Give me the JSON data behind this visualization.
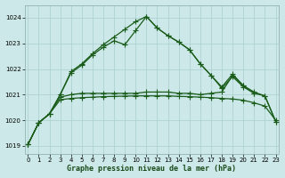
{
  "title": "Graphe pression niveau de la mer (hPa)",
  "background_color": "#cce8e8",
  "grid_color": "#aacece",
  "line_color": "#1a5c1a",
  "xlim": [
    -0.3,
    23.3
  ],
  "ylim": [
    1018.7,
    1024.5
  ],
  "yticks": [
    1019,
    1020,
    1021,
    1022,
    1023,
    1024
  ],
  "xtick_labels": [
    "0",
    "1",
    "2",
    "3",
    "4",
    "5",
    "6",
    "7",
    "8",
    "9",
    "10",
    "11",
    "12",
    "13",
    "14",
    "15",
    "16",
    "17",
    "18",
    "19",
    "20",
    "21",
    "22",
    "23"
  ],
  "series1_x": [
    0,
    1,
    2,
    3,
    4,
    5,
    6,
    7,
    8,
    9,
    10,
    11,
    12,
    13,
    14,
    15,
    16,
    17,
    18,
    19,
    20,
    21
  ],
  "series1_y": [
    1019.05,
    1019.9,
    1020.25,
    1021.0,
    1021.85,
    1022.15,
    1022.55,
    1022.85,
    1023.1,
    1022.95,
    1023.5,
    1024.05,
    1023.6,
    1023.3,
    1023.05,
    1022.75,
    1022.2,
    1021.75,
    1021.25,
    1021.7,
    1021.3,
    1021.05
  ],
  "series2_x": [
    0,
    1,
    2,
    3,
    4,
    5,
    6,
    7,
    8,
    9,
    10,
    11,
    12,
    13,
    14,
    15,
    16,
    17,
    18,
    19,
    20,
    21,
    22,
    23
  ],
  "series2_y": [
    1019.05,
    1019.9,
    1020.25,
    1021.0,
    1021.9,
    1022.2,
    1022.6,
    1022.95,
    1023.25,
    1023.55,
    1023.85,
    1024.05,
    1023.6,
    1023.3,
    1023.05,
    1022.75,
    1022.2,
    1021.75,
    1021.3,
    1021.8,
    1021.35,
    1021.1,
    1020.95,
    1019.95
  ],
  "series3_x": [
    0,
    1,
    2,
    3,
    4,
    5,
    6,
    7,
    8,
    9,
    10,
    11,
    12,
    13,
    14,
    15,
    16,
    17,
    18,
    19,
    20,
    21,
    22,
    23
  ],
  "series3_y": [
    1019.05,
    1019.9,
    1020.25,
    1020.9,
    1021.0,
    1021.05,
    1021.05,
    1021.05,
    1021.05,
    1021.05,
    1021.05,
    1021.1,
    1021.1,
    1021.1,
    1021.05,
    1021.05,
    1021.0,
    1021.05,
    1021.1,
    1021.75,
    1021.35,
    1021.05,
    1020.95,
    1019.95
  ],
  "series4_x": [
    0,
    1,
    2,
    3,
    4,
    5,
    6,
    7,
    8,
    9,
    10,
    11,
    12,
    13,
    14,
    15,
    16,
    17,
    18,
    19,
    20,
    21,
    22,
    23
  ],
  "series4_y": [
    1019.05,
    1019.9,
    1020.25,
    1020.8,
    1020.85,
    1020.88,
    1020.9,
    1020.92,
    1020.93,
    1020.94,
    1020.95,
    1020.95,
    1020.95,
    1020.95,
    1020.93,
    1020.92,
    1020.9,
    1020.88,
    1020.85,
    1020.83,
    1020.78,
    1020.68,
    1020.55,
    1020.0
  ],
  "markersize": 2.5,
  "linewidth": 0.9,
  "tick_fontsize": 5.0,
  "xlabel_fontsize": 6.0
}
